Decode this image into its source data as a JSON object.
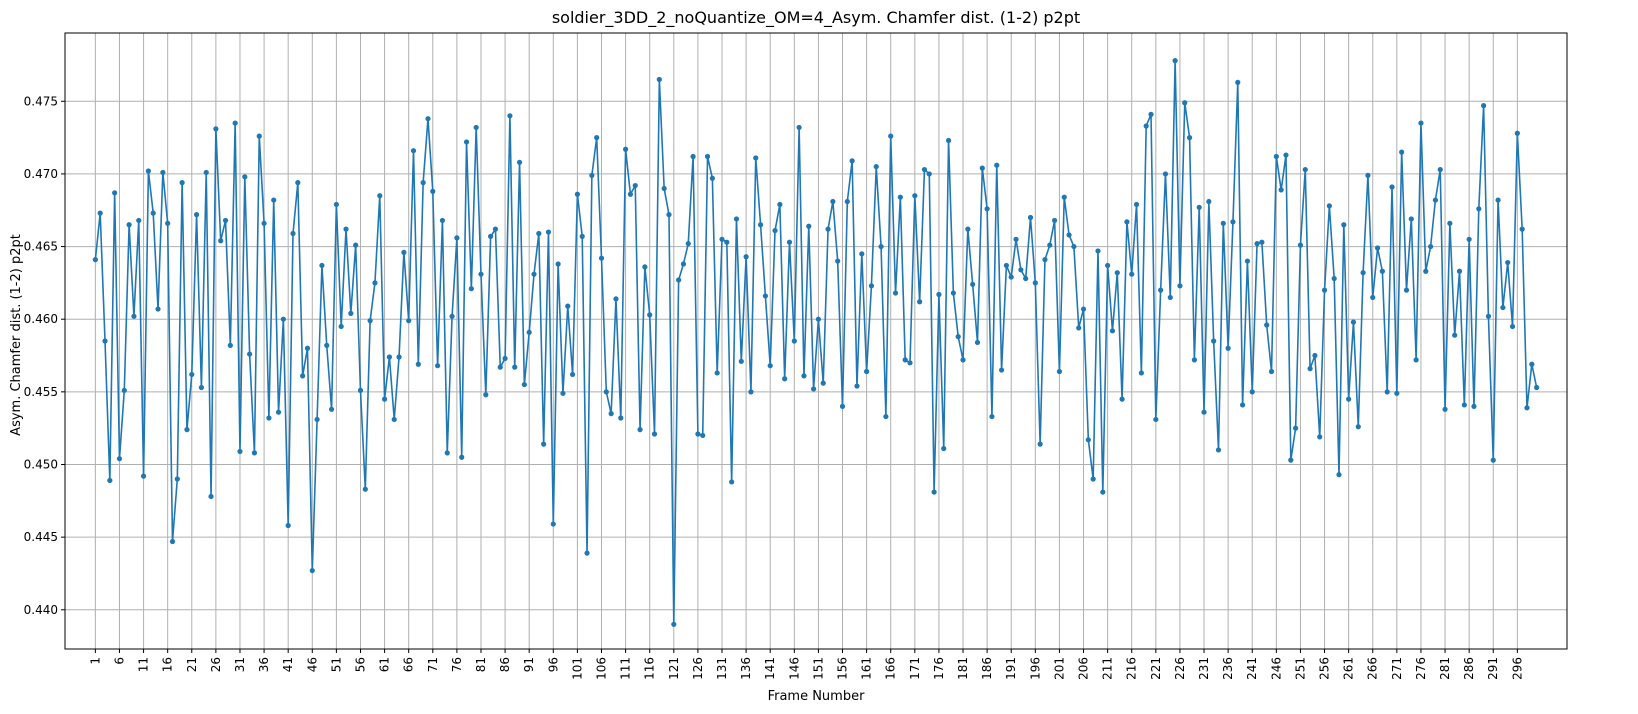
{
  "chart_data": {
    "type": "line",
    "title": "soldier_3DD_2_noQuantize_OM=4_Asym. Chamfer dist. (1-2) p2pt",
    "xlabel": "Frame Number",
    "ylabel": "Asym. Chamfer dist. (1-2) p2pt",
    "xlim": [
      -5.3,
      306.3
    ],
    "ylim": [
      0.4373,
      0.4797
    ],
    "xticks": [
      1,
      6,
      11,
      16,
      21,
      26,
      31,
      36,
      41,
      46,
      51,
      56,
      61,
      66,
      71,
      76,
      81,
      86,
      91,
      96,
      101,
      106,
      111,
      116,
      121,
      126,
      131,
      136,
      141,
      146,
      151,
      156,
      161,
      166,
      171,
      176,
      181,
      186,
      191,
      196,
      201,
      206,
      211,
      216,
      221,
      226,
      231,
      236,
      241,
      246,
      251,
      256,
      261,
      266,
      271,
      276,
      281,
      286,
      291,
      296
    ],
    "yticks": [
      0.44,
      0.445,
      0.45,
      0.455,
      0.46,
      0.465,
      0.47,
      0.475
    ],
    "ytick_labels": [
      "0.440",
      "0.445",
      "0.450",
      "0.455",
      "0.460",
      "0.465",
      "0.470",
      "0.475"
    ],
    "grid": true,
    "color": "#1f77b4",
    "marker": "circle",
    "x_start": 1,
    "series": [
      {
        "values": [
          0.4641,
          0.4673,
          0.4585,
          0.4489,
          0.4687,
          0.4504,
          0.4551,
          0.4665,
          0.4602,
          0.4668,
          0.4492,
          0.4702,
          0.4673,
          0.4607,
          0.4701,
          0.4666,
          0.4447,
          0.449,
          0.4694,
          0.4524,
          0.4562,
          0.4672,
          0.4553,
          0.4701,
          0.4478,
          0.4731,
          0.4654,
          0.4668,
          0.4582,
          0.4735,
          0.4509,
          0.4698,
          0.4576,
          0.4508,
          0.4726,
          0.4666,
          0.4532,
          0.4682,
          0.4536,
          0.46,
          0.4458,
          0.4659,
          0.4694,
          0.4561,
          0.458,
          0.4427,
          0.4531,
          0.4637,
          0.4582,
          0.4538,
          0.4679,
          0.4595,
          0.4662,
          0.4604,
          0.4651,
          0.4551,
          0.4483,
          0.4599,
          0.4625,
          0.4685,
          0.4545,
          0.4574,
          0.4531,
          0.4574,
          0.4646,
          0.4599,
          0.4716,
          0.4569,
          0.4694,
          0.4738,
          0.4688,
          0.4568,
          0.4668,
          0.4508,
          0.4602,
          0.4656,
          0.4505,
          0.4722,
          0.4621,
          0.4732,
          0.4631,
          0.4548,
          0.4657,
          0.4662,
          0.4567,
          0.4573,
          0.474,
          0.4567,
          0.4708,
          0.4555,
          0.4591,
          0.4631,
          0.4659,
          0.4514,
          0.466,
          0.4459,
          0.4638,
          0.4549,
          0.4609,
          0.4562,
          0.4686,
          0.4657,
          0.4439,
          0.4699,
          0.4725,
          0.4642,
          0.455,
          0.4535,
          0.4614,
          0.4532,
          0.4717,
          0.4686,
          0.4692,
          0.4524,
          0.4636,
          0.4603,
          0.4521,
          0.4765,
          0.469,
          0.4672,
          0.439,
          0.4627,
          0.4638,
          0.4652,
          0.4712,
          0.4521,
          0.452,
          0.4712,
          0.4697,
          0.4563,
          0.4655,
          0.4653,
          0.4488,
          0.4669,
          0.4571,
          0.4643,
          0.455,
          0.4711,
          0.4665,
          0.4616,
          0.4568,
          0.4661,
          0.4679,
          0.4559,
          0.4653,
          0.4585,
          0.4732,
          0.4561,
          0.4664,
          0.4552,
          0.46,
          0.4556,
          0.4662,
          0.4681,
          0.464,
          0.454,
          0.4681,
          0.4709,
          0.4554,
          0.4645,
          0.4564,
          0.4623,
          0.4705,
          0.465,
          0.4533,
          0.4726,
          0.4618,
          0.4684,
          0.4572,
          0.457,
          0.4685,
          0.4612,
          0.4703,
          0.47,
          0.4481,
          0.4617,
          0.4511,
          0.4723,
          0.4618,
          0.4588,
          0.4572,
          0.4662,
          0.4624,
          0.4584,
          0.4704,
          0.4676,
          0.4533,
          0.4706,
          0.4565,
          0.4637,
          0.4629,
          0.4655,
          0.4634,
          0.4628,
          0.467,
          0.4625,
          0.4514,
          0.4641,
          0.4651,
          0.4668,
          0.4564,
          0.4684,
          0.4658,
          0.465,
          0.4594,
          0.4607,
          0.4517,
          0.449,
          0.4647,
          0.4481,
          0.4637,
          0.4592,
          0.4632,
          0.4545,
          0.4667,
          0.4631,
          0.4679,
          0.4563,
          0.4733,
          0.4741,
          0.4531,
          0.462,
          0.47,
          0.4615,
          0.4778,
          0.4623,
          0.4749,
          0.4725,
          0.4572,
          0.4677,
          0.4536,
          0.4681,
          0.4585,
          0.451,
          0.4666,
          0.458,
          0.4667,
          0.4763,
          0.4541,
          0.464,
          0.455,
          0.4652,
          0.4653,
          0.4596,
          0.4564,
          0.4712,
          0.4689,
          0.4713,
          0.4503,
          0.4525,
          0.4651,
          0.4703,
          0.4566,
          0.4575,
          0.4519,
          0.462,
          0.4678,
          0.4628,
          0.4493,
          0.4665,
          0.4545,
          0.4598,
          0.4526,
          0.4632,
          0.4699,
          0.4615,
          0.4649,
          0.4633,
          0.455,
          0.4691,
          0.4549,
          0.4715,
          0.462,
          0.4669,
          0.4572,
          0.4735,
          0.4633,
          0.465,
          0.4682,
          0.4703,
          0.4538,
          0.4666,
          0.4589,
          0.4633,
          0.4541,
          0.4655,
          0.454,
          0.4676,
          0.4747,
          0.4602,
          0.4503,
          0.4682,
          0.4608,
          0.4639,
          0.4595,
          0.4728,
          0.4662,
          0.4539,
          0.4569,
          0.4553
        ]
      }
    ]
  }
}
